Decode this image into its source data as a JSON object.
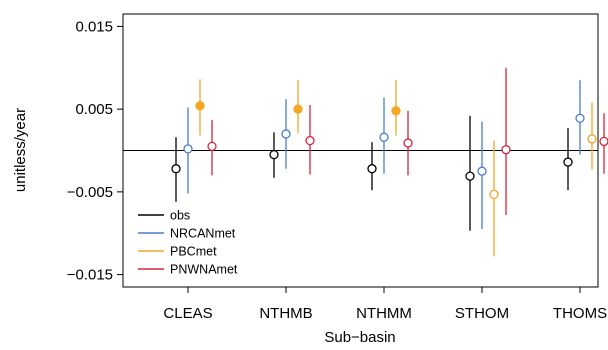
{
  "chart_data": {
    "type": "scatter",
    "xlabel": "Sub−basin",
    "ylabel": "unitless/year",
    "categories": [
      "CLEAS",
      "NTHMB",
      "NTHMM",
      "STHOM",
      "THOMS"
    ],
    "y_ticks": [
      {
        "value": 0.015,
        "label": "0.015"
      },
      {
        "value": 0.005,
        "label": "0.005"
      },
      {
        "value": -0.005,
        "label": "−0.005"
      },
      {
        "value": -0.015,
        "label": "−0.015"
      }
    ],
    "ylim": [
      -0.0165,
      0.0165
    ],
    "reference_line": 0,
    "grid": false,
    "legend_position": "bottom-left",
    "series": [
      {
        "name": "obs",
        "color": "#000000",
        "points": [
          {
            "y": -0.0022,
            "low": -0.0062,
            "high": 0.0016,
            "filled": false
          },
          {
            "y": -0.0005,
            "low": -0.0033,
            "high": 0.0022,
            "filled": false
          },
          {
            "y": -0.0022,
            "low": -0.0048,
            "high": 0.001,
            "filled": false
          },
          {
            "y": -0.0031,
            "low": -0.0097,
            "high": 0.0042,
            "filled": false
          },
          {
            "y": -0.0014,
            "low": -0.0048,
            "high": 0.0027,
            "filled": false
          }
        ]
      },
      {
        "name": "NRCANmet",
        "color": "#4a7bd0",
        "points": [
          {
            "y": 0.0002,
            "low": -0.0052,
            "high": 0.0052,
            "filled": false
          },
          {
            "y": 0.002,
            "low": -0.0022,
            "high": 0.0062,
            "filled": false
          },
          {
            "y": 0.0016,
            "low": -0.0028,
            "high": 0.0064,
            "filled": false
          },
          {
            "y": -0.0025,
            "low": -0.0095,
            "high": 0.0035,
            "filled": false
          },
          {
            "y": 0.0039,
            "low": -0.0005,
            "high": 0.0085,
            "filled": false
          }
        ]
      },
      {
        "name": "PBCmet",
        "color": "#f5a623",
        "points": [
          {
            "y": 0.0054,
            "low": 0.0018,
            "high": 0.0086,
            "filled": true
          },
          {
            "y": 0.005,
            "low": 0.0021,
            "high": 0.0085,
            "filled": true
          },
          {
            "y": 0.0048,
            "low": 0.0018,
            "high": 0.0085,
            "filled": true
          },
          {
            "y": -0.0053,
            "low": -0.0128,
            "high": 0.0012,
            "filled": false
          },
          {
            "y": 0.0014,
            "low": -0.0023,
            "high": 0.0058,
            "filled": false
          }
        ]
      },
      {
        "name": "PNWNAmet",
        "color": "#d7263d",
        "points": [
          {
            "y": 0.0005,
            "low": -0.003,
            "high": 0.0037,
            "filled": false
          },
          {
            "y": 0.0012,
            "low": -0.0029,
            "high": 0.0055,
            "filled": false
          },
          {
            "y": 0.0009,
            "low": -0.003,
            "high": 0.0048,
            "filled": false
          },
          {
            "y": 0.0001,
            "low": -0.0078,
            "high": 0.01,
            "filled": false
          },
          {
            "y": 0.0011,
            "low": -0.0028,
            "high": 0.0045,
            "filled": false
          }
        ]
      }
    ]
  }
}
